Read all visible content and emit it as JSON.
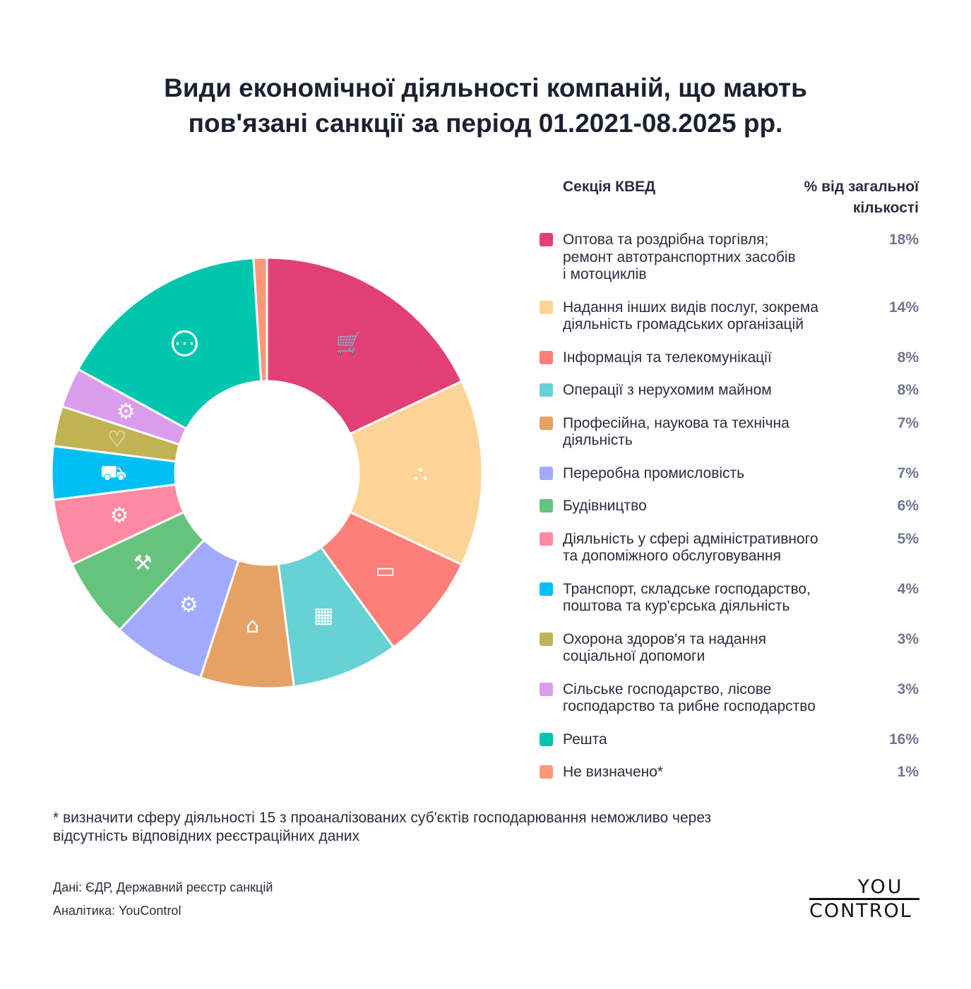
{
  "title": {
    "line1": "Види економічної діяльності компаній, що мають",
    "line2": "пов'язані санкції за період 01.2021-08.2025 рр."
  },
  "legend_header": {
    "category": "Секція КВЕД",
    "percent": "% від загальної кількості"
  },
  "chart_data": {
    "type": "pie",
    "variant": "donut",
    "title": "Види економічної діяльності компаній, що мають пов'язані санкції за період 01.2021-08.2025 рр.",
    "unit": "%",
    "start": "top",
    "direction": "clockwise",
    "legend_position": "right",
    "slices": [
      {
        "label_lines": [
          "Оптова та роздрібна торгівля;",
          "ремонт автотранспортних засобів",
          "і мотоциклів"
        ],
        "value": 18,
        "pct_text": "18%",
        "color": "#e23f76",
        "icon": "shopping-cart-icon"
      },
      {
        "label_lines": [
          "Надання інших видів послуг, зокрема",
          "діяльність громадських організацій"
        ],
        "value": 14,
        "pct_text": "14%",
        "color": "#fdd495",
        "icon": "org-chart-icon"
      },
      {
        "label_lines": [
          "Інформація та телекомунікації"
        ],
        "value": 8,
        "pct_text": "8%",
        "color": "#fd7f78",
        "icon": "laptop-user-icon"
      },
      {
        "label_lines": [
          "Операції з нерухомим майном"
        ],
        "value": 8,
        "pct_text": "8%",
        "color": "#67d1d3",
        "icon": "building-icon"
      },
      {
        "label_lines": [
          "Професійна, наукова та технічна",
          "діяльність"
        ],
        "value": 7,
        "pct_text": "7%",
        "color": "#e6a164",
        "icon": "graduation-cap-icon"
      },
      {
        "label_lines": [
          "Переробна промисловість"
        ],
        "value": 7,
        "pct_text": "7%",
        "color": "#a1aafd",
        "icon": "worker-gears-icon"
      },
      {
        "label_lines": [
          "Будівництво"
        ],
        "value": 6,
        "pct_text": "6%",
        "color": "#66c37b",
        "icon": "hammer-icon"
      },
      {
        "label_lines": [
          "Діяльність у сфері адміністративного",
          "та допоміжного обслуговування"
        ],
        "value": 5,
        "pct_text": "5%",
        "color": "#fd8aa2",
        "icon": "engineer-gear-icon"
      },
      {
        "label_lines": [
          "Транспорт, складське господарство,",
          "поштова та кур'єрська діяльність"
        ],
        "value": 4,
        "pct_text": "4%",
        "color": "#00c0f3",
        "icon": "truck-icon"
      },
      {
        "label_lines": [
          "Охорона здоров'я та надання",
          "соціальної допомоги"
        ],
        "value": 3,
        "pct_text": "3%",
        "color": "#bfb354",
        "icon": "heart-pulse-icon"
      },
      {
        "label_lines": [
          "Сільське господарство, лісове",
          "господарство та рибне господарство"
        ],
        "value": 3,
        "pct_text": "3%",
        "color": "#dc9ced",
        "icon": "tractor-icon"
      },
      {
        "label_lines": [
          "Решта"
        ],
        "value": 16,
        "pct_text": "16%",
        "color": "#00c6ad",
        "icon": "more-dots-icon"
      },
      {
        "label_lines": [
          "Не визначено*"
        ],
        "value": 1,
        "pct_text": "1%",
        "color": "#fa9878",
        "icon": ""
      }
    ]
  },
  "footnote": {
    "line1": "* визначити сферу діяльності 15 з проаналізованих суб'єктів господарювання неможливо через",
    "line2": "відсутність відповідних реєстраційних даних"
  },
  "sources": {
    "data": "Дані: ЄДР, Державний реєстр санкцій",
    "analytics": "Аналітика: YouControl"
  },
  "logo": {
    "top": "YOU",
    "bottom": "CONTROL"
  }
}
